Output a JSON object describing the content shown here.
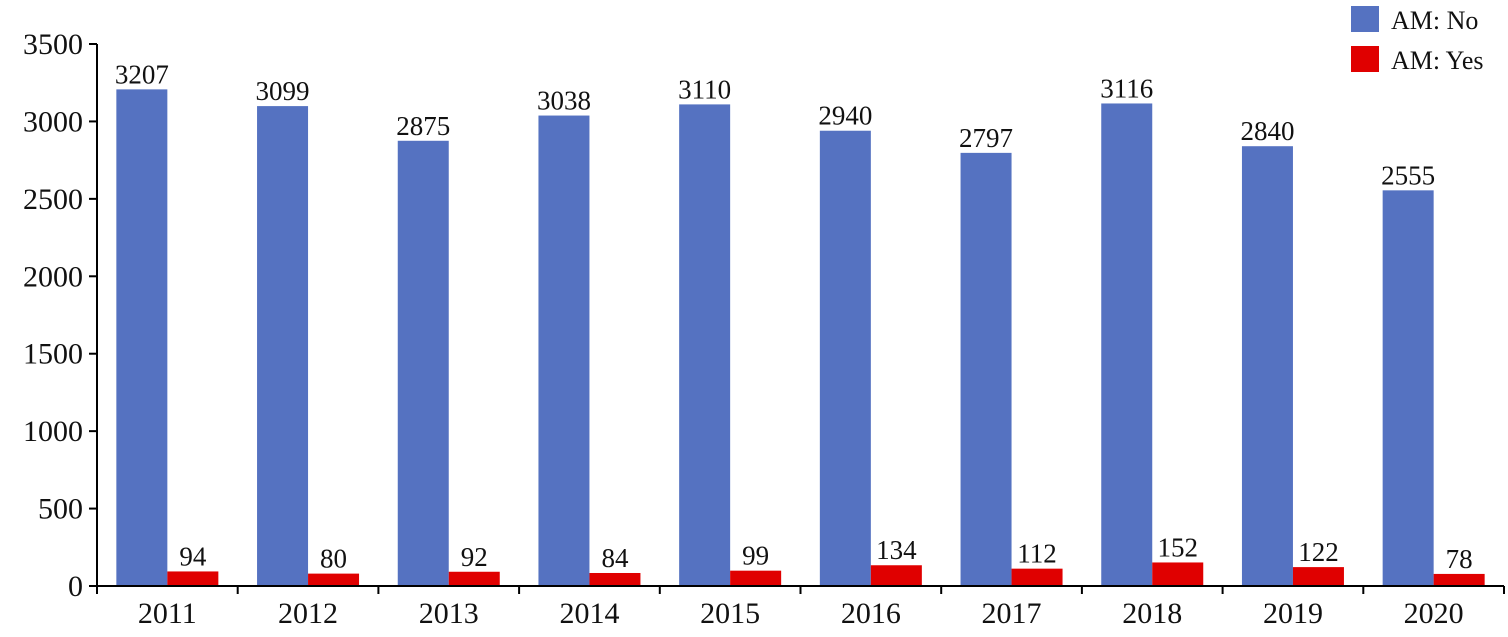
{
  "chart_data": {
    "type": "bar",
    "title": "",
    "xlabel": "",
    "ylabel": "",
    "categories": [
      "2011",
      "2012",
      "2013",
      "2014",
      "2015",
      "2016",
      "2017",
      "2018",
      "2019",
      "2020"
    ],
    "series": [
      {
        "name": "AM: No",
        "color": "#5572C1",
        "values": [
          3207,
          3099,
          2875,
          3038,
          3110,
          2940,
          2797,
          3116,
          2840,
          2555
        ]
      },
      {
        "name": "AM: Yes",
        "color": "#E00000",
        "values": [
          94,
          80,
          92,
          84,
          99,
          134,
          112,
          152,
          122,
          78
        ]
      }
    ],
    "ylim": [
      0,
      3500
    ],
    "yticks": [
      "0",
      "500",
      "1000",
      "1500",
      "2000",
      "2500",
      "3000",
      "3500"
    ],
    "grid": false,
    "legend_position": "top-right",
    "data_labels": true
  }
}
